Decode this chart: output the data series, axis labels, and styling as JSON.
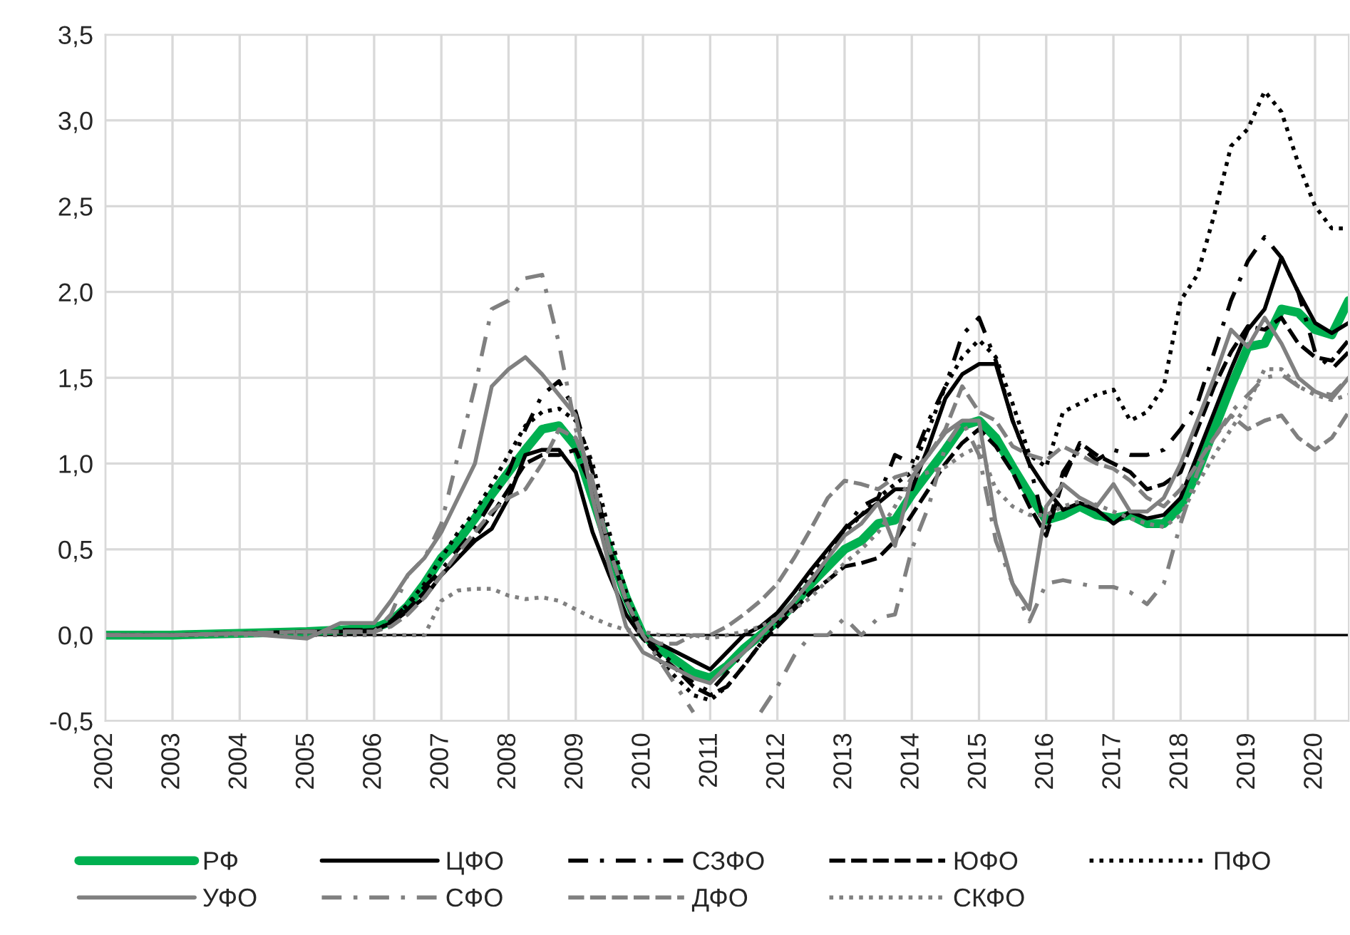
{
  "chart_data": {
    "type": "line",
    "x": [
      2002,
      2003,
      2004,
      2005,
      2005.5,
      2006,
      2006.25,
      2006.5,
      2006.75,
      2007,
      2007.25,
      2007.5,
      2007.75,
      2008,
      2008.25,
      2008.5,
      2008.75,
      2009,
      2009.25,
      2009.5,
      2009.75,
      2010,
      2010.25,
      2010.5,
      2010.75,
      2011,
      2011.25,
      2011.5,
      2011.75,
      2012,
      2012.25,
      2012.5,
      2012.75,
      2013,
      2013.25,
      2013.5,
      2013.75,
      2014,
      2014.25,
      2014.5,
      2014.75,
      2015,
      2015.25,
      2015.5,
      2015.75,
      2016,
      2016.25,
      2016.5,
      2016.75,
      2017,
      2017.25,
      2017.5,
      2017.75,
      2018,
      2018.25,
      2018.5,
      2018.75,
      2019,
      2019.25,
      2019.5,
      2019.75,
      2020,
      2020.25,
      2020.5
    ],
    "series": [
      {
        "name": "РФ",
        "color": "#00b050",
        "line_style": "solid",
        "values": [
          0,
          0,
          0.01,
          0.02,
          0.03,
          0.04,
          0.08,
          0.17,
          0.3,
          0.45,
          0.55,
          0.68,
          0.82,
          0.95,
          1.08,
          1.2,
          1.22,
          1.1,
          0.8,
          0.5,
          0.22,
          0.0,
          -0.08,
          -0.15,
          -0.22,
          -0.25,
          -0.18,
          -0.08,
          0.0,
          0.08,
          0.18,
          0.3,
          0.4,
          0.5,
          0.55,
          0.65,
          0.67,
          0.82,
          0.95,
          1.08,
          1.22,
          1.25,
          1.15,
          0.98,
          0.82,
          0.67,
          0.7,
          0.75,
          0.7,
          0.68,
          0.7,
          0.65,
          0.65,
          0.75,
          0.95,
          1.2,
          1.45,
          1.68,
          1.7,
          1.9,
          1.88,
          1.78,
          1.75,
          1.95
        ]
      },
      {
        "name": "ЦФО",
        "color": "#000000",
        "line_style": "solid",
        "values": [
          0,
          0,
          0.01,
          0.02,
          0.02,
          0.03,
          0.07,
          0.14,
          0.22,
          0.35,
          0.45,
          0.55,
          0.62,
          0.8,
          1.05,
          1.08,
          1.08,
          0.95,
          0.6,
          0.35,
          0.12,
          -0.02,
          -0.05,
          -0.1,
          -0.15,
          -0.2,
          -0.1,
          0.0,
          0.05,
          0.13,
          0.25,
          0.38,
          0.5,
          0.62,
          0.7,
          0.77,
          0.85,
          0.85,
          1.1,
          1.38,
          1.52,
          1.58,
          1.58,
          1.25,
          1.0,
          0.85,
          0.73,
          0.77,
          0.73,
          0.65,
          0.72,
          0.68,
          0.7,
          0.8,
          1.05,
          1.3,
          1.55,
          1.78,
          1.9,
          2.2,
          2.0,
          1.82,
          1.76,
          1.82
        ]
      },
      {
        "name": "СЗФО",
        "color": "#000000",
        "line_style": "dashdot",
        "values": [
          0,
          0,
          0.01,
          0.02,
          0.03,
          0.03,
          0.08,
          0.18,
          0.28,
          0.38,
          0.5,
          0.62,
          0.78,
          0.95,
          1.2,
          1.4,
          1.48,
          1.3,
          0.95,
          0.5,
          0.2,
          0.0,
          -0.1,
          -0.18,
          -0.28,
          -0.33,
          -0.22,
          -0.1,
          0.0,
          0.08,
          0.18,
          0.3,
          0.45,
          0.62,
          0.75,
          0.8,
          1.05,
          1.0,
          1.25,
          1.45,
          1.75,
          1.85,
          1.6,
          1.25,
          1.0,
          0.6,
          0.95,
          1.1,
          1.02,
          1.08,
          1.05,
          1.05,
          1.08,
          1.2,
          1.35,
          1.65,
          1.95,
          2.18,
          2.32,
          2.2,
          2.0,
          1.65,
          1.55,
          1.65
        ]
      },
      {
        "name": "ЮФО",
        "color": "#000000",
        "line_style": "dashed",
        "values": [
          0,
          0,
          0.01,
          0.02,
          0.02,
          0.02,
          0.06,
          0.15,
          0.25,
          0.35,
          0.45,
          0.57,
          0.7,
          0.85,
          1.0,
          1.05,
          1.05,
          1.08,
          0.85,
          0.5,
          0.2,
          -0.02,
          -0.12,
          -0.2,
          -0.3,
          -0.35,
          -0.3,
          -0.18,
          -0.05,
          0.05,
          0.15,
          0.25,
          0.32,
          0.4,
          0.42,
          0.45,
          0.55,
          0.7,
          0.85,
          1.0,
          1.12,
          1.2,
          1.1,
          0.95,
          0.75,
          0.58,
          0.9,
          1.12,
          1.05,
          1.0,
          0.95,
          0.85,
          0.88,
          0.95,
          1.2,
          1.45,
          1.65,
          1.8,
          1.78,
          1.85,
          1.7,
          1.62,
          1.6,
          1.72
        ]
      },
      {
        "name": "ПФО",
        "color": "#000000",
        "line_style": "dotted",
        "values": [
          0,
          0,
          0.01,
          0.02,
          0.02,
          0.02,
          0.08,
          0.18,
          0.3,
          0.45,
          0.6,
          0.72,
          0.88,
          1.05,
          1.22,
          1.3,
          1.32,
          1.25,
          1.0,
          0.6,
          0.25,
          0.0,
          -0.15,
          -0.25,
          -0.35,
          -0.38,
          -0.3,
          -0.18,
          -0.05,
          0.08,
          0.2,
          0.35,
          0.48,
          0.6,
          0.7,
          0.8,
          0.88,
          0.95,
          1.2,
          1.45,
          1.62,
          1.72,
          1.62,
          1.35,
          1.05,
          0.98,
          1.3,
          1.35,
          1.4,
          1.43,
          1.25,
          1.3,
          1.45,
          1.95,
          2.1,
          2.45,
          2.85,
          2.95,
          3.17,
          3.05,
          2.75,
          2.5,
          2.37,
          2.37
        ]
      },
      {
        "name": "УФО",
        "color": "#808080",
        "line_style": "solid",
        "values": [
          0,
          0,
          0.01,
          -0.02,
          0.07,
          0.07,
          0.2,
          0.35,
          0.45,
          0.6,
          0.8,
          1.0,
          1.45,
          1.55,
          1.62,
          1.52,
          1.4,
          1.28,
          0.8,
          0.4,
          0.05,
          -0.1,
          -0.15,
          -0.2,
          -0.25,
          -0.28,
          -0.18,
          -0.1,
          0.0,
          0.1,
          0.2,
          0.32,
          0.45,
          0.58,
          0.65,
          0.77,
          0.52,
          0.92,
          1.05,
          1.18,
          1.25,
          1.25,
          0.65,
          0.3,
          0.15,
          0.75,
          0.88,
          0.8,
          0.75,
          0.88,
          0.72,
          0.72,
          0.8,
          1.0,
          1.25,
          1.5,
          1.78,
          1.68,
          1.85,
          1.7,
          1.5,
          1.42,
          1.38,
          1.5
        ]
      },
      {
        "name": "СФО",
        "color": "#808080",
        "line_style": "dashdot",
        "values": [
          0,
          0,
          0.01,
          0.02,
          0.02,
          0.02,
          0.12,
          0.35,
          0.45,
          0.65,
          1.05,
          1.45,
          1.9,
          1.95,
          2.08,
          2.1,
          1.7,
          1.2,
          0.9,
          0.5,
          0.2,
          0.0,
          -0.15,
          -0.3,
          -0.45,
          null,
          null,
          null,
          -0.45,
          -0.3,
          -0.12,
          0.0,
          0.0,
          0.1,
          0.0,
          0.1,
          0.12,
          0.5,
          0.75,
          1.1,
          1.25,
          1.05,
          0.55,
          0.3,
          0.08,
          0.3,
          0.32,
          0.3,
          0.28,
          0.28,
          0.25,
          0.18,
          0.3,
          0.65,
          0.95,
          1.15,
          1.3,
          1.4,
          1.5,
          1.52,
          1.45,
          1.42,
          1.4,
          1.5
        ]
      },
      {
        "name": "ДФО",
        "color": "#808080",
        "line_style": "dashed",
        "values": [
          0,
          0,
          0.01,
          0.02,
          0.02,
          0.02,
          0.05,
          0.12,
          0.22,
          0.35,
          0.48,
          0.6,
          0.72,
          0.8,
          0.85,
          1.0,
          1.2,
          1.15,
          0.9,
          0.5,
          0.2,
          0.0,
          -0.05,
          -0.05,
          0.0,
          0.0,
          0.05,
          0.12,
          0.2,
          0.3,
          0.45,
          0.62,
          0.8,
          0.9,
          0.88,
          0.85,
          0.92,
          0.95,
          1.05,
          1.2,
          1.45,
          1.3,
          1.25,
          1.1,
          1.05,
          1.02,
          1.1,
          1.05,
          1.0,
          0.97,
          0.9,
          0.8,
          0.75,
          0.85,
          1.0,
          1.15,
          1.28,
          1.2,
          1.25,
          1.28,
          1.15,
          1.08,
          1.15,
          1.3
        ]
      },
      {
        "name": "СКФО",
        "color": "#808080",
        "line_style": "dotted",
        "values": [
          0,
          0,
          0,
          0,
          0,
          0.0,
          0.0,
          0.0,
          0.0,
          0.2,
          0.26,
          0.27,
          0.27,
          0.23,
          0.21,
          0.22,
          0.2,
          0.15,
          0.1,
          0.06,
          0.03,
          0.02,
          0.0,
          0.0,
          0.0,
          -0.02,
          0.0,
          0.02,
          0.05,
          0.1,
          0.15,
          0.22,
          0.32,
          0.42,
          0.5,
          0.6,
          0.75,
          0.92,
          0.95,
          0.98,
          1.05,
          1.1,
          0.85,
          0.75,
          0.7,
          0.7,
          0.75,
          0.78,
          0.76,
          0.72,
          0.68,
          0.65,
          0.63,
          0.7,
          0.88,
          1.05,
          1.2,
          1.35,
          1.55,
          1.55,
          1.45,
          1.4,
          1.37,
          1.4
        ]
      }
    ],
    "xlim": [
      2002,
      2020.5
    ],
    "xticks": [
      2002,
      2003,
      2004,
      2005,
      2006,
      2007,
      2008,
      2009,
      2010,
      2011,
      2012,
      2013,
      2014,
      2015,
      2016,
      2017,
      2018,
      2019,
      2020
    ],
    "ylim": [
      -0.5,
      3.5
    ],
    "yticks": [
      {
        "value": -0.5,
        "label": "-0,5"
      },
      {
        "value": 0,
        "label": "0,0"
      },
      {
        "value": 0.5,
        "label": "0,5"
      },
      {
        "value": 1,
        "label": "1,0"
      },
      {
        "value": 1.5,
        "label": "1,5"
      },
      {
        "value": 2,
        "label": "2,0"
      },
      {
        "value": 2.5,
        "label": "2,5"
      },
      {
        "value": 3,
        "label": "3,0"
      },
      {
        "value": 3.5,
        "label": "3,5"
      }
    ],
    "ref_lines": [
      {
        "axis": "y",
        "value": 0,
        "color": "#000000"
      }
    ],
    "grid": true,
    "legend": "bottom"
  }
}
